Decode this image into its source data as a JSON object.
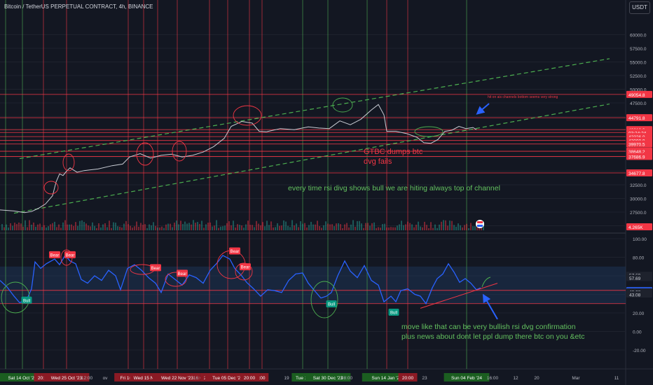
{
  "header": {
    "title": "Bitcoin / TetherUS PERPETUAL CONTRACT, 4h, BINANCE",
    "currency": "USDT"
  },
  "annotations": {
    "strong_support": "hit on ais channels bottom seems very strong",
    "gtbc": "GTBC dumps btc",
    "dvg_fails": "dvg fails",
    "rsi_bull_top": "every time rsi divg shows bull we are hiting always top of channel",
    "move_line1": "move like that can be very bullish rsi dvg confirmation",
    "move_line2": "plus news about dont let ppl dump there btc on you &etc"
  },
  "chart_data": [
    {
      "type": "line",
      "name": "price",
      "y_ticks": [
        25000,
        27500,
        30000,
        32500,
        35000,
        37500,
        40000,
        42500,
        45000,
        47500,
        50000,
        52500,
        55000,
        57500,
        60000
      ],
      "y_tick_labels": [
        "25000.0",
        "27500.0",
        "30000.0",
        "32500.0",
        "35000.0",
        "37500.0",
        "40000.0",
        "42500.0",
        "45000.0",
        "47500.0",
        "50000.0",
        "52500.0",
        "55000.0",
        "57500.0",
        "60000.0"
      ],
      "horizontal_levels": [
        {
          "label": "49054.8",
          "value": 49054.8
        },
        {
          "label": "44791.8",
          "value": 44791.8
        },
        {
          "label": "42610.9",
          "value": 42610.9
        },
        {
          "label": "03:24:24",
          "value": 42080
        },
        {
          "label": "42326.0",
          "value": 41330
        },
        {
          "label": "42000.9",
          "value": 40620
        },
        {
          "label": "39970.5",
          "value": 39970.5
        },
        {
          "label": "38648.2",
          "value": 38648.2
        },
        {
          "label": "37686.9",
          "value": 37686.9
        },
        {
          "label": "34677.8",
          "value": 34677.8
        }
      ],
      "volume_label": "4.265K",
      "price_path": [
        [
          0,
          27900
        ],
        [
          20,
          27700
        ],
        [
          35,
          27400
        ],
        [
          45,
          27600
        ],
        [
          55,
          28200
        ],
        [
          65,
          29000
        ],
        [
          75,
          30500
        ],
        [
          80,
          33000
        ],
        [
          85,
          34500
        ],
        [
          90,
          34200
        ],
        [
          95,
          35000
        ],
        [
          100,
          35600
        ],
        [
          110,
          34800
        ],
        [
          120,
          35100
        ],
        [
          140,
          35400
        ],
        [
          160,
          36000
        ],
        [
          175,
          36300
        ],
        [
          185,
          37600
        ],
        [
          200,
          38200
        ],
        [
          215,
          37400
        ],
        [
          230,
          37900
        ],
        [
          245,
          38100
        ],
        [
          260,
          37600
        ],
        [
          275,
          37900
        ],
        [
          290,
          38500
        ],
        [
          305,
          39500
        ],
        [
          320,
          41000
        ],
        [
          330,
          43200
        ],
        [
          345,
          44100
        ],
        [
          360,
          43800
        ],
        [
          370,
          42300
        ],
        [
          380,
          42200
        ],
        [
          400,
          42800
        ],
        [
          420,
          42600
        ],
        [
          440,
          43100
        ],
        [
          455,
          42900
        ],
        [
          470,
          42800
        ],
        [
          485,
          44200
        ],
        [
          500,
          43500
        ],
        [
          515,
          44500
        ],
        [
          530,
          46200
        ],
        [
          540,
          47200
        ],
        [
          548,
          45300
        ],
        [
          552,
          42300
        ],
        [
          565,
          42300
        ],
        [
          580,
          41900
        ],
        [
          595,
          41200
        ],
        [
          605,
          40200
        ],
        [
          615,
          40100
        ],
        [
          625,
          40800
        ],
        [
          635,
          42300
        ],
        [
          645,
          42500
        ],
        [
          655,
          43200
        ],
        [
          665,
          42800
        ],
        [
          675,
          43000
        ],
        [
          680,
          42600
        ]
      ],
      "channel_top": [
        [
          28,
          37300
        ],
        [
          870,
          55600
        ]
      ],
      "channel_bottom": [
        [
          20,
          27300
        ],
        [
          870,
          47300
        ]
      ]
    },
    {
      "type": "line",
      "name": "rsi",
      "y_ticks": [
        100,
        80,
        60,
        40,
        20,
        0,
        -20
      ],
      "y_tick_labels": [
        "100.00",
        "80.00",
        "60.00",
        "40.00",
        "20.00",
        "0.00",
        "-20.00"
      ],
      "level_labels": [
        "57.69",
        "57.69",
        "44.69",
        "44.31",
        "43.08",
        "43.08"
      ],
      "level_values": [
        61,
        57.69,
        44.69,
        44.31,
        43.08,
        40
      ],
      "band": [
        30,
        70
      ],
      "signals": [
        {
          "label": "Bull",
          "x": 38,
          "v": 33
        },
        {
          "label": "Bear",
          "x": 78,
          "v": 82
        },
        {
          "label": "Bear",
          "x": 100,
          "v": 82
        },
        {
          "label": "Bear",
          "x": 222,
          "v": 68
        },
        {
          "label": "Bear",
          "x": 260,
          "v": 62
        },
        {
          "label": "Bear",
          "x": 335,
          "v": 86
        },
        {
          "label": "Bear",
          "x": 350,
          "v": 69
        },
        {
          "label": "Bull",
          "x": 473,
          "v": 29
        },
        {
          "label": "Bull",
          "x": 562,
          "v": 20
        }
      ],
      "rsi_path": [
        [
          0,
          55
        ],
        [
          10,
          48
        ],
        [
          20,
          38
        ],
        [
          28,
          31
        ],
        [
          38,
          34
        ],
        [
          45,
          46
        ],
        [
          50,
          75
        ],
        [
          58,
          68
        ],
        [
          66,
          73
        ],
        [
          78,
          78
        ],
        [
          85,
          72
        ],
        [
          93,
          82
        ],
        [
          100,
          76
        ],
        [
          108,
          73
        ],
        [
          116,
          56
        ],
        [
          125,
          52
        ],
        [
          135,
          60
        ],
        [
          145,
          55
        ],
        [
          155,
          66
        ],
        [
          165,
          60
        ],
        [
          172,
          45
        ],
        [
          182,
          68
        ],
        [
          192,
          72
        ],
        [
          202,
          66
        ],
        [
          212,
          58
        ],
        [
          222,
          52
        ],
        [
          230,
          42
        ],
        [
          240,
          62
        ],
        [
          250,
          56
        ],
        [
          260,
          50
        ],
        [
          270,
          61
        ],
        [
          280,
          58
        ],
        [
          290,
          52
        ],
        [
          300,
          66
        ],
        [
          310,
          74
        ],
        [
          318,
          82
        ],
        [
          328,
          78
        ],
        [
          335,
          68
        ],
        [
          345,
          60
        ],
        [
          352,
          53
        ],
        [
          362,
          46
        ],
        [
          372,
          38
        ],
        [
          382,
          45
        ],
        [
          392,
          44
        ],
        [
          402,
          42
        ],
        [
          412,
          55
        ],
        [
          422,
          62
        ],
        [
          432,
          63
        ],
        [
          440,
          52
        ],
        [
          450,
          43
        ],
        [
          458,
          36
        ],
        [
          466,
          38
        ],
        [
          473,
          42
        ],
        [
          482,
          60
        ],
        [
          492,
          76
        ],
        [
          500,
          65
        ],
        [
          510,
          58
        ],
        [
          520,
          71
        ],
        [
          530,
          55
        ],
        [
          540,
          50
        ],
        [
          548,
          32
        ],
        [
          558,
          38
        ],
        [
          565,
          32
        ],
        [
          572,
          44
        ],
        [
          582,
          46
        ],
        [
          592,
          40
        ],
        [
          600,
          38
        ],
        [
          608,
          30
        ],
        [
          617,
          47
        ],
        [
          624,
          57
        ],
        [
          632,
          62
        ],
        [
          640,
          73
        ],
        [
          648,
          64
        ],
        [
          656,
          53
        ],
        [
          664,
          57
        ],
        [
          672,
          52
        ],
        [
          680,
          45
        ],
        [
          686,
          47
        ]
      ],
      "trendline": [
        [
          600,
          25
        ],
        [
          710,
          52
        ]
      ]
    }
  ],
  "time_axis": [
    {
      "label": "1:00",
      "x": 8,
      "hl": true
    },
    {
      "label": "Sat 14 Oct '23",
      "x": 32,
      "hl": true
    },
    {
      "label": "20:00",
      "x": 62,
      "hl": true
    },
    {
      "label": "Wed 25 Oct '23",
      "x": 95,
      "hl": true
    },
    {
      "label": "12:00",
      "x": 124,
      "hl": false
    },
    {
      "label": "ov",
      "x": 150,
      "hl": false
    },
    {
      "label": "Fri 10 N",
      "x": 183,
      "hl": true
    },
    {
      "label": "Wed 15 N",
      "x": 205,
      "hl": true
    },
    {
      "label": "Mc",
      "x": 225,
      "hl": true
    },
    {
      "label": "Wed 22 Nov '23",
      "x": 253,
      "hl": true
    },
    {
      "label": "16:00",
      "x": 284,
      "hl": false
    },
    {
      "label": "20:00",
      "x": 299,
      "hl": true
    },
    {
      "label": "Tue 05 Dec '23",
      "x": 325,
      "hl": true
    },
    {
      "label": "20:00",
      "x": 356,
      "hl": true
    },
    {
      "label": ":00",
      "x": 374,
      "hl": true
    },
    {
      "label": "19",
      "x": 409,
      "hl": false
    },
    {
      "label": "Tue 26",
      "x": 432,
      "hl": true
    },
    {
      "label": "Sat 30 Dec '23",
      "x": 468,
      "hl": true
    },
    {
      "label": "08:00",
      "x": 495,
      "hl": false
    },
    {
      "label": "Sr",
      "x": 524,
      "hl": true
    },
    {
      "label": "Sun 14 Jan '24",
      "x": 552,
      "hl": true
    },
    {
      "label": "20:00",
      "x": 582,
      "hl": true
    },
    {
      "label": "23",
      "x": 606,
      "hl": false
    },
    {
      "label": "Sun 04 Feb '24",
      "x": 666,
      "hl": true
    },
    {
      "label": "16:00",
      "x": 703,
      "hl": false
    },
    {
      "label": "12",
      "x": 736,
      "hl": false
    },
    {
      "label": "20",
      "x": 766,
      "hl": false
    },
    {
      "label": "Mar",
      "x": 822,
      "hl": false
    },
    {
      "label": "11",
      "x": 880,
      "hl": false
    }
  ],
  "colors": {
    "background": "#131722",
    "price": "#c8cbd3",
    "rsi": "#2962ff",
    "red": "#f23645",
    "green": "#4caf50",
    "green_text": "#63c05f",
    "channel": "#4caf50",
    "band": "#1e3a5f"
  }
}
